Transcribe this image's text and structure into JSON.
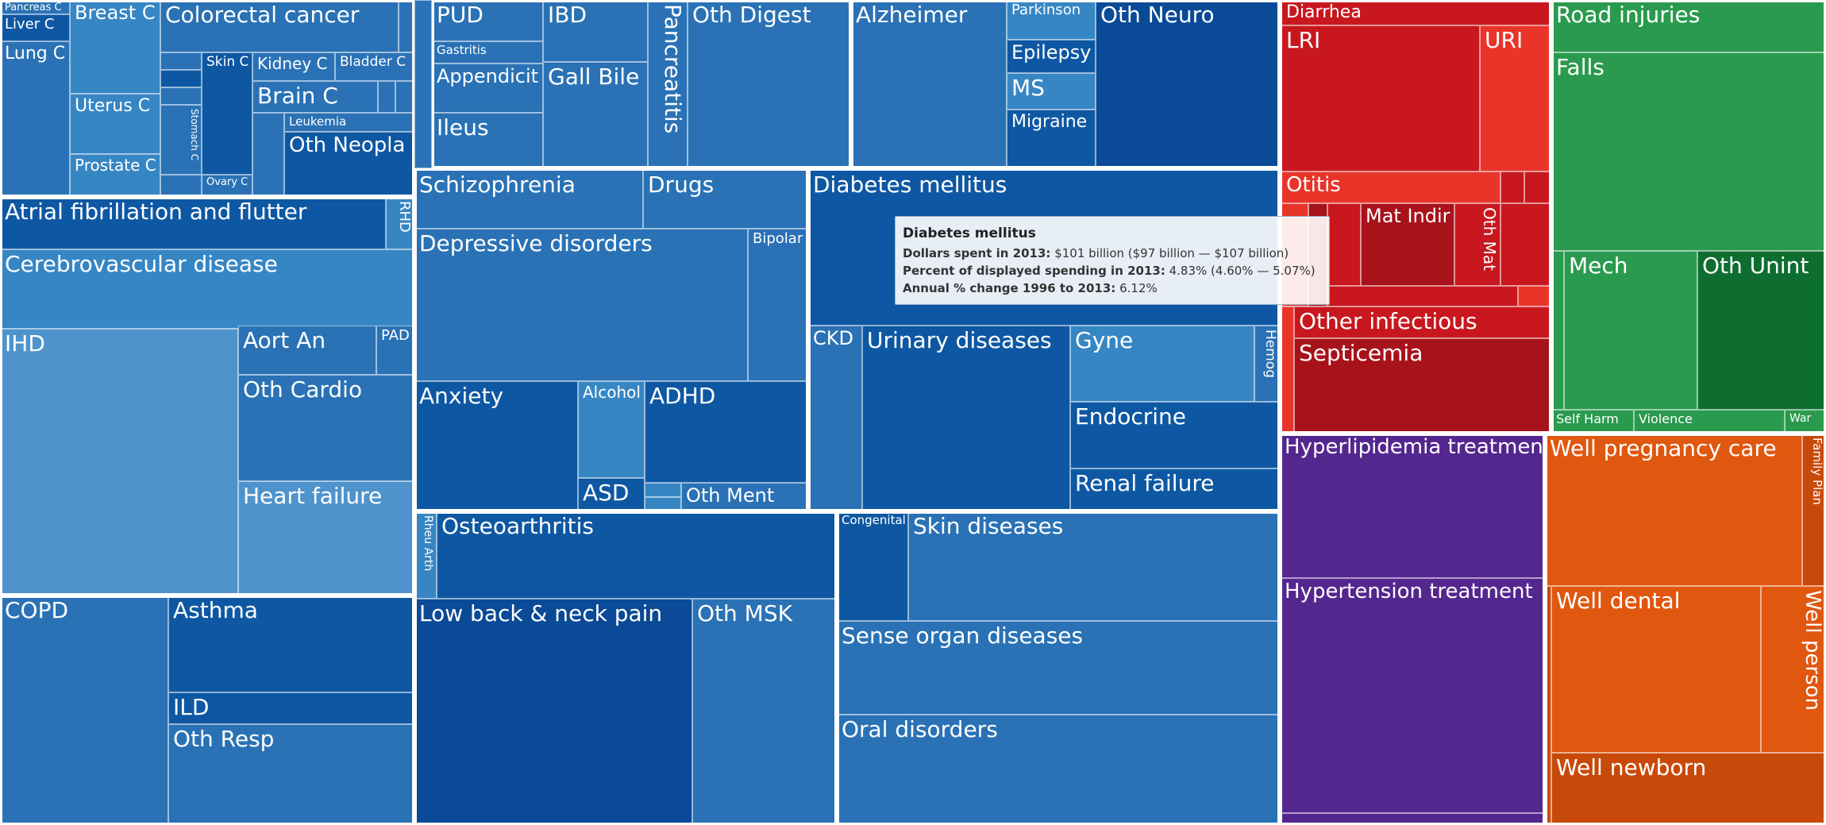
{
  "colors": {
    "blue_light": "#4f93cc",
    "blue_mid": "#3786c4",
    "blue_std": "#2a72b5",
    "blue_dark": "#0e58a3",
    "blue_navy": "#0a4a97",
    "red": "#c8171e",
    "red_light": "#e9342a",
    "red_dark": "#a8121a",
    "green": "#2a9a4e",
    "green_dark": "#0d6e30",
    "purple": "#54278f",
    "orange": "#e0570f",
    "orange_dark": "#c84a0a"
  },
  "tooltip": {
    "title": "Diabetes mellitus",
    "dollars_label": "Dollars spent in 2013:",
    "dollars_value": "$101 billion ($97 billion — $107 billion)",
    "percent_label": "Percent of displayed spending in 2013:",
    "percent_value": "4.83% (4.60% — 5.07%)",
    "change_label": "Annual % change 1996 to 2013:",
    "change_value": "6.12%"
  },
  "chart_data": {
    "type": "treemap",
    "hover": {
      "cause": "Diabetes mellitus",
      "dollars_spent_2013_billion": 101,
      "dollars_interval_billion": [
        97,
        107
      ],
      "percent_of_spending_2013": 4.83,
      "percent_interval": [
        4.6,
        5.07
      ],
      "annual_percent_change_1996_2013": 6.12
    },
    "groups": [
      {
        "color_key": "blue_std",
        "causes": [
          "Pancreas C",
          "Liver C",
          "Lung C",
          "Breast C",
          "Uterus C",
          "Prostate C",
          "Colorectal cancer",
          "Skin C",
          "Stomach C",
          "Ovary C",
          "Kidney C",
          "Bladder C",
          "Brain C",
          "Leukemia",
          "Oth Neopla"
        ]
      },
      {
        "color_key": "blue_std",
        "causes": [
          "PUD",
          "Gastritis",
          "Appendicit",
          "Ileus",
          "IBD",
          "Gall Bile",
          "Pancreatitis",
          "Oth Digest"
        ]
      },
      {
        "color_key": "blue_std",
        "causes": [
          "Alzheimer",
          "Parkinson",
          "Epilepsy",
          "MS",
          "Migraine",
          "Oth Neuro"
        ]
      },
      {
        "color_key": "blue_light",
        "causes": [
          "Atrial fibrillation and flutter",
          "RHD",
          "Cerebrovascular disease",
          "IHD",
          "Aort An",
          "PAD",
          "Oth Cardio",
          "Heart failure"
        ]
      },
      {
        "color_key": "blue_std",
        "causes": [
          "Schizophrenia",
          "Drugs",
          "Depressive disorders",
          "Bipolar",
          "Anxiety",
          "Alcohol",
          "ADHD",
          "ASD",
          "Oth Ment"
        ]
      },
      {
        "color_key": "blue_dark",
        "causes": [
          "Diabetes mellitus",
          "CKD",
          "Urinary diseases",
          "Gyne",
          "Hemog",
          "Endocrine",
          "Renal failure"
        ]
      },
      {
        "color_key": "blue_dark",
        "causes": [
          "COPD",
          "Asthma",
          "ILD",
          "Oth Resp"
        ]
      },
      {
        "color_key": "blue_dark",
        "causes": [
          "Rheu Arth",
          "Osteoarthritis",
          "Low back & neck pain",
          "Oth MSK"
        ]
      },
      {
        "color_key": "blue_std",
        "causes": [
          "Congenital",
          "Skin diseases",
          "Sense organ diseases",
          "Oral disorders"
        ]
      },
      {
        "color_key": "red",
        "causes": [
          "Diarrhea",
          "LRI",
          "URI",
          "Otitis",
          "Mat Indir",
          "Oth Mat",
          "Other infectious",
          "Septicemia"
        ]
      },
      {
        "color_key": "green",
        "causes": [
          "Road injuries",
          "Falls",
          "Mech",
          "Oth Unint",
          "Self Harm",
          "Violence",
          "War"
        ]
      },
      {
        "color_key": "purple",
        "causes": [
          "Hyperlipidemia treatment",
          "Hypertension treatment"
        ]
      },
      {
        "color_key": "orange",
        "causes": [
          "Well pregnancy care",
          "Family Plan",
          "Well dental",
          "Well person",
          "Well newborn"
        ]
      }
    ]
  }
}
